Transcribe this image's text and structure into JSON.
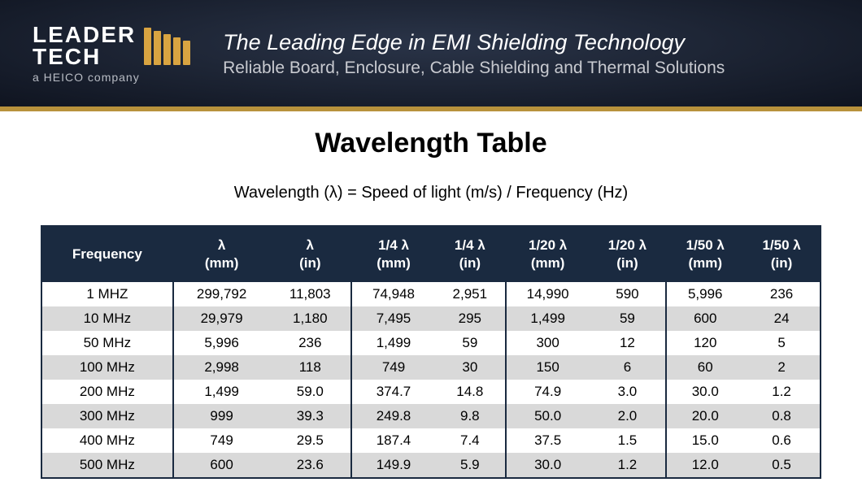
{
  "header": {
    "logo_line1": "LEADER",
    "logo_line2": "TECH",
    "logo_sub": "a HEICO company",
    "tagline1": "The Leading Edge in EMI Shielding Technology",
    "tagline2": "Reliable Board, Enclosure, Cable Shielding and Thermal Solutions",
    "bg_color": "#1a2130",
    "accent_color": "#b8923c",
    "logo_bar_color": "#d9a441"
  },
  "content": {
    "title": "Wavelength Table",
    "formula": "Wavelength (λ) = Speed of light (m/s) / Frequency (Hz)"
  },
  "table": {
    "header_bg": "#1a2a40",
    "header_color": "#ffffff",
    "row_even_bg": "#d9d9d9",
    "row_odd_bg": "#ffffff",
    "font_size": 17,
    "columns": [
      {
        "top": "Frequency",
        "bottom": ""
      },
      {
        "top": "λ",
        "bottom": "(mm)"
      },
      {
        "top": "λ",
        "bottom": "(in)"
      },
      {
        "top": "1/4 λ",
        "bottom": "(mm)"
      },
      {
        "top": "1/4 λ",
        "bottom": "(in)"
      },
      {
        "top": "1/20 λ",
        "bottom": "(mm)"
      },
      {
        "top": "1/20 λ",
        "bottom": "(in)"
      },
      {
        "top": "1/50 λ",
        "bottom": "(mm)"
      },
      {
        "top": "1/50 λ",
        "bottom": "(in)"
      }
    ],
    "rows": [
      [
        "1 MHZ",
        "299,792",
        "11,803",
        "74,948",
        "2,951",
        "14,990",
        "590",
        "5,996",
        "236"
      ],
      [
        "10 MHz",
        "29,979",
        "1,180",
        "7,495",
        "295",
        "1,499",
        "59",
        "600",
        "24"
      ],
      [
        "50 MHz",
        "5,996",
        "236",
        "1,499",
        "59",
        "300",
        "12",
        "120",
        "5"
      ],
      [
        "100 MHz",
        "2,998",
        "118",
        "749",
        "30",
        "150",
        "6",
        "60",
        "2"
      ],
      [
        "200 MHz",
        "1,499",
        "59.0",
        "374.7",
        "14.8",
        "74.9",
        "3.0",
        "30.0",
        "1.2"
      ],
      [
        "300 MHz",
        "999",
        "39.3",
        "249.8",
        "9.8",
        "50.0",
        "2.0",
        "20.0",
        "0.8"
      ],
      [
        "400 MHz",
        "749",
        "29.5",
        "187.4",
        "7.4",
        "37.5",
        "1.5",
        "15.0",
        "0.6"
      ],
      [
        "500 MHz",
        "600",
        "23.6",
        "149.9",
        "5.9",
        "30.0",
        "1.2",
        "12.0",
        "0.5"
      ]
    ]
  }
}
